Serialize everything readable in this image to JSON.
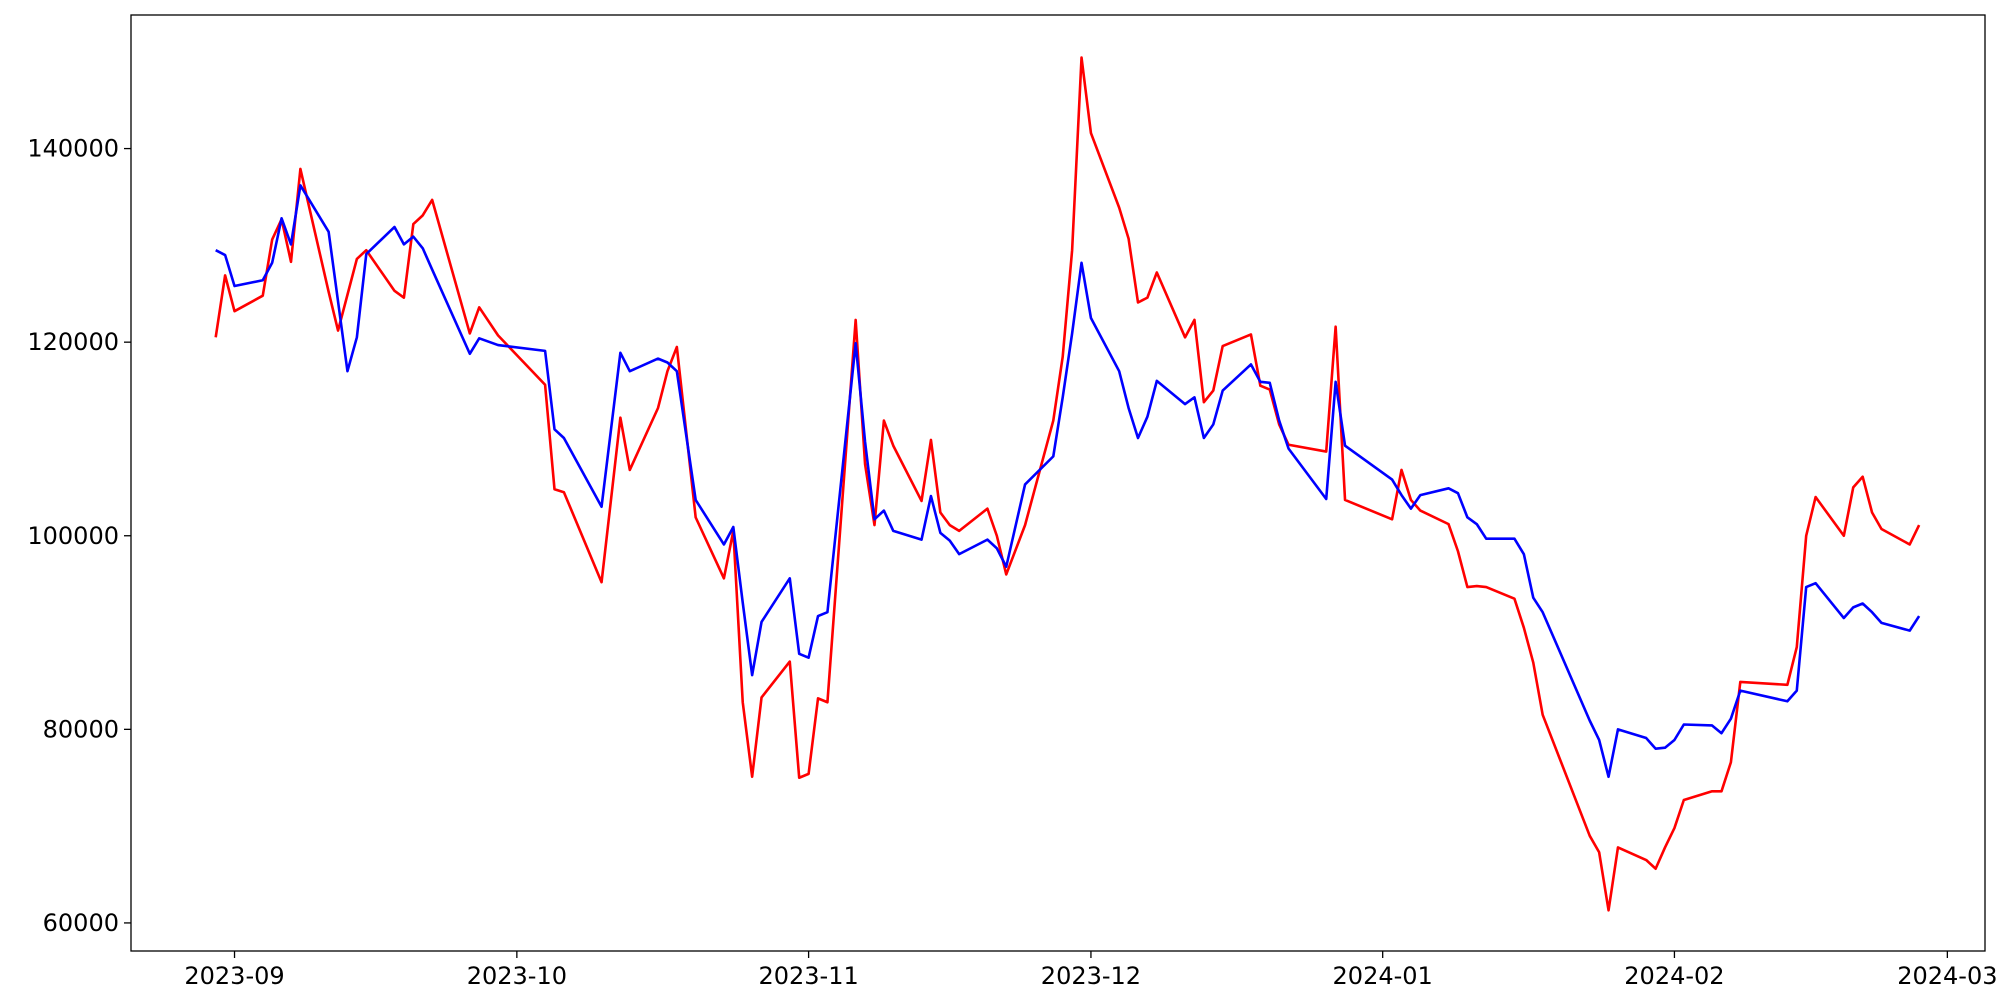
{
  "chart_data": {
    "type": "line",
    "x": [
      "2023-08-30",
      "2023-08-31",
      "2023-09-01",
      "2023-09-04",
      "2023-09-05",
      "2023-09-06",
      "2023-09-07",
      "2023-09-08",
      "2023-09-11",
      "2023-09-12",
      "2023-09-13",
      "2023-09-14",
      "2023-09-15",
      "2023-09-18",
      "2023-09-19",
      "2023-09-20",
      "2023-09-21",
      "2023-09-22",
      "2023-09-26",
      "2023-09-27",
      "2023-09-29",
      "2023-10-04",
      "2023-10-05",
      "2023-10-06",
      "2023-10-10",
      "2023-10-12",
      "2023-10-13",
      "2023-10-16",
      "2023-10-17",
      "2023-10-18",
      "2023-10-20",
      "2023-10-23",
      "2023-10-24",
      "2023-10-25",
      "2023-10-26",
      "2023-10-27",
      "2023-10-30",
      "2023-10-31",
      "2023-11-01",
      "2023-11-02",
      "2023-11-03",
      "2023-11-06",
      "2023-11-07",
      "2023-11-08",
      "2023-11-09",
      "2023-11-10",
      "2023-11-13",
      "2023-11-14",
      "2023-11-15",
      "2023-11-16",
      "2023-11-17",
      "2023-11-20",
      "2023-11-21",
      "2023-11-22",
      "2023-11-24",
      "2023-11-27",
      "2023-11-28",
      "2023-11-29",
      "2023-11-30",
      "2023-12-01",
      "2023-12-04",
      "2023-12-05",
      "2023-12-06",
      "2023-12-07",
      "2023-12-08",
      "2023-12-11",
      "2023-12-12",
      "2023-12-13",
      "2023-12-14",
      "2023-12-15",
      "2023-12-18",
      "2023-12-19",
      "2023-12-20",
      "2023-12-21",
      "2023-12-22",
      "2023-12-26",
      "2023-12-27",
      "2023-12-28",
      "2024-01-02",
      "2024-01-03",
      "2024-01-04",
      "2024-01-05",
      "2024-01-08",
      "2024-01-09",
      "2024-01-10",
      "2024-01-11",
      "2024-01-12",
      "2024-01-15",
      "2024-01-16",
      "2024-01-17",
      "2024-01-18",
      "2024-01-23",
      "2024-01-24",
      "2024-01-25",
      "2024-01-26",
      "2024-01-29",
      "2024-01-30",
      "2024-01-31",
      "2024-02-01",
      "2024-02-02",
      "2024-02-05",
      "2024-02-06",
      "2024-02-07",
      "2024-02-08",
      "2024-02-13",
      "2024-02-14",
      "2024-02-15",
      "2024-02-16",
      "2024-02-19",
      "2024-02-20",
      "2024-02-21",
      "2024-02-22",
      "2024-02-23",
      "2024-02-26",
      "2024-02-27"
    ],
    "series": [
      {
        "color": "#ff0000",
        "values": [
          120500,
          126900,
          123200,
          124800,
          130600,
          132700,
          128300,
          137900,
          125200,
          121200,
          124900,
          128600,
          129500,
          125300,
          124600,
          132200,
          133100,
          134700,
          120900,
          123600,
          120700,
          115600,
          104800,
          104500,
          95200,
          112200,
          106800,
          113200,
          117000,
          119500,
          101900,
          95600,
          100500,
          82800,
          75100,
          83300,
          87000,
          75000,
          75400,
          83200,
          82800,
          122300,
          107400,
          101100,
          111900,
          109300,
          103600,
          109900,
          102400,
          101100,
          100500,
          102800,
          100000,
          96000,
          101100,
          111900,
          118500,
          129500,
          149400,
          141600,
          133900,
          130700,
          124100,
          124600,
          127200,
          120500,
          122300,
          113800,
          115000,
          119600,
          120800,
          115500,
          115100,
          111500,
          109400,
          108700,
          121600,
          103700,
          101700,
          106800,
          103700,
          102600,
          101200,
          98400,
          94700,
          94800,
          94700,
          93500,
          90500,
          86900,
          81500,
          69000,
          67300,
          61300,
          67800,
          66500,
          65600,
          67800,
          69800,
          72700,
          73600,
          73600,
          76600,
          84900,
          84600,
          88500,
          100000,
          104000,
          100000,
          105000,
          106100,
          102400,
          100700,
          99100,
          101100
        ]
      },
      {
        "color": "#0000ff",
        "values": [
          129500,
          129000,
          125800,
          126400,
          128200,
          132800,
          130100,
          136200,
          131400,
          124200,
          117000,
          120500,
          129100,
          131900,
          130100,
          130900,
          129700,
          127500,
          118800,
          120400,
          119700,
          119100,
          111000,
          110100,
          103000,
          118900,
          117000,
          118300,
          117900,
          117000,
          103700,
          99100,
          100900,
          93100,
          85600,
          91100,
          95600,
          87800,
          87400,
          91700,
          92100,
          119900,
          109700,
          101700,
          102600,
          100500,
          99600,
          104100,
          100300,
          99500,
          98100,
          99600,
          98700,
          96800,
          105300,
          108200,
          114300,
          120900,
          128200,
          122500,
          117000,
          113200,
          110100,
          112300,
          116000,
          113600,
          114300,
          110100,
          111500,
          115000,
          117700,
          115900,
          115800,
          111900,
          109000,
          103800,
          115900,
          109300,
          105800,
          104200,
          102800,
          104200,
          104900,
          104400,
          101900,
          101200,
          99700,
          99700,
          98100,
          93600,
          92100,
          80900,
          78900,
          75100,
          80000,
          79100,
          78000,
          78100,
          78900,
          80500,
          80400,
          79600,
          81100,
          84000,
          82900,
          84000,
          94700,
          95100,
          91500,
          92600,
          93000,
          92100,
          91000,
          90200,
          91700
        ]
      }
    ],
    "xlim": [
      "2023-08-21",
      "2024-03-05"
    ],
    "xticks": [
      {
        "value": "2023-09-01",
        "label": "2023-09"
      },
      {
        "value": "2023-10-01",
        "label": "2023-10"
      },
      {
        "value": "2023-11-01",
        "label": "2023-11"
      },
      {
        "value": "2023-12-01",
        "label": "2023-12"
      },
      {
        "value": "2024-01-01",
        "label": "2024-01"
      },
      {
        "value": "2024-02-01",
        "label": "2024-02"
      },
      {
        "value": "2024-03-01",
        "label": "2024-03"
      }
    ],
    "ylim": [
      57100,
      153800
    ],
    "yticks": [
      60000,
      80000,
      100000,
      120000,
      140000
    ],
    "grid": false
  }
}
